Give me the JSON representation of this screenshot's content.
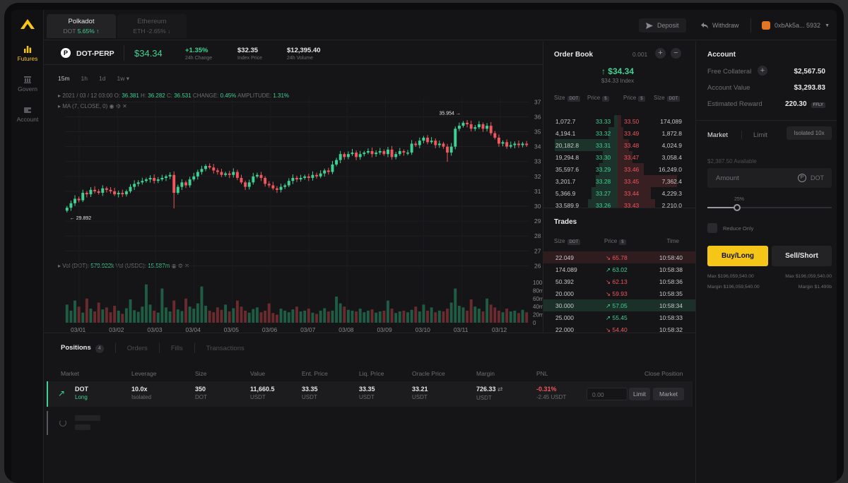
{
  "sidebar": {
    "items": [
      {
        "label": "Futures",
        "icon": "bar-chart-icon",
        "active": true
      },
      {
        "label": "Govern",
        "icon": "building-icon",
        "active": false
      },
      {
        "label": "Account",
        "icon": "wallet-icon",
        "active": false
      }
    ]
  },
  "markets": [
    {
      "name": "Polkadot",
      "symbol": "DOT",
      "change": "5.65% ↑",
      "active": true
    },
    {
      "name": "Ethereum",
      "symbol": "ETH",
      "change": "-2.65% ↓",
      "active": false
    }
  ],
  "topbar": {
    "deposit": "Deposit",
    "withdraw": "Withdraw",
    "wallet": "0xbAk5a... 5932"
  },
  "ticker": {
    "pair": "DOT-PERP",
    "price": "$34.34",
    "change": "+1.35%",
    "change_label": "24h Change",
    "index_price": "$32.35",
    "index_label": "Index Price",
    "volume": "$12,395.40",
    "volume_label": "24h Volume"
  },
  "chart": {
    "timeframes": [
      "15m",
      "1h",
      "1d",
      "1w ▾"
    ],
    "ohlc_line": {
      "date": "2021 / 03 / 12 03:00",
      "o_label": "O:",
      "o": "36.381",
      "h_label": "H:",
      "h": "36.282",
      "c_label": "C:",
      "c": "36.531",
      "change_label": "CHANGE:",
      "change": "0.45%",
      "amp_label": "AMPLITUDE:",
      "amp": "1.31%"
    },
    "ma_label": "MA (7, CLOSE, 0)",
    "vol_line": {
      "dot_label": "Vol (DOT):",
      "dot": "579.922k",
      "usdc_label": "Vol (USDC):",
      "usdc": "15.587m"
    },
    "high_marker": "35.954",
    "low_marker": "29.892"
  },
  "chart_data": {
    "type": "candlestick",
    "y_ticks": [
      37,
      36,
      35,
      34,
      33,
      32,
      31,
      30,
      29,
      28,
      27,
      26
    ],
    "ylim": [
      25.5,
      37.3
    ],
    "vol_ticks": [
      "100m",
      "80m",
      "60m",
      "40m",
      "20m",
      "0"
    ],
    "x_ticks": [
      "03/01",
      "03/02",
      "03/03",
      "03/04",
      "03/05",
      "03/06",
      "03/07",
      "03/08",
      "03/09",
      "03/10",
      "03/11",
      "03/12"
    ],
    "closes": [
      29.9,
      30.2,
      30.5,
      30.4,
      30.9,
      30.8,
      31.1,
      31.0,
      30.9,
      31.2,
      31.1,
      31.0,
      30.8,
      30.9,
      30.8,
      31.0,
      31.3,
      31.5,
      31.6,
      31.7,
      31.8,
      31.9,
      31.7,
      31.8,
      31.9,
      32.0,
      32.1,
      30.9,
      31.3,
      31.6,
      31.4,
      31.8,
      32.0,
      32.3,
      32.5,
      32.7,
      32.6,
      32.4,
      32.3,
      32.1,
      32.2,
      32.1,
      32.3,
      31.9,
      31.6,
      31.3,
      31.6,
      32.0,
      32.1,
      31.9,
      31.5,
      31.4,
      31.2,
      31.1,
      31.3,
      31.4,
      31.7,
      31.9,
      31.8,
      31.9,
      32.0,
      31.9,
      32.1,
      32.0,
      32.2,
      32.4,
      32.3,
      32.8,
      33.1,
      33.5,
      33.3,
      33.5,
      33.6,
      33.3,
      33.5,
      33.6,
      33.7,
      33.5,
      33.6,
      33.7,
      33.5,
      33.8,
      33.3,
      33.5,
      33.7,
      33.6,
      33.6,
      34.2,
      34.1,
      34.4,
      34.6,
      34.3,
      34.4,
      34.1,
      34.2,
      34.0,
      33.6,
      34.0,
      35.2,
      35.4,
      35.6,
      35.5,
      35.2,
      35.3,
      35.5,
      35.2,
      35.4,
      34.9,
      34.6,
      34.2,
      34.3,
      34.0,
      34.1,
      34.2,
      34.1,
      34.2,
      34.1
    ],
    "volumes": [
      45,
      30,
      55,
      40,
      25,
      60,
      35,
      28,
      50,
      33,
      38,
      26,
      42,
      30,
      22,
      36,
      58,
      31,
      27,
      40,
      95,
      45,
      30,
      25,
      85,
      38,
      28,
      55,
      33,
      29,
      60,
      40,
      35,
      48,
      90,
      42,
      30,
      26,
      38,
      32,
      45,
      28,
      36,
      55,
      40,
      30,
      25,
      34,
      38,
      26,
      30,
      48,
      24,
      20,
      35,
      30,
      26,
      33,
      40,
      28,
      30,
      35,
      25,
      22,
      30,
      36,
      28,
      30,
      65,
      48,
      40,
      32,
      30,
      28,
      35,
      26,
      30,
      33,
      25,
      28,
      30,
      55,
      35,
      24,
      28,
      30,
      26,
      32,
      40,
      28,
      45,
      30,
      38,
      26,
      30,
      28,
      35,
      50,
      85,
      42,
      38,
      30,
      58,
      40,
      35,
      28,
      60,
      45,
      38,
      30,
      26,
      35,
      28,
      30,
      24,
      32,
      26
    ]
  },
  "orderbook": {
    "title": "Order Book",
    "tick": "0.001",
    "mid_price": "↑ $34.34",
    "mid_index": "$34.33 Index",
    "headers": {
      "size": "Size",
      "size_unit": "DOT",
      "price": "Price",
      "price_unit": "$"
    },
    "rows": [
      {
        "bid_size": "1,072.7",
        "bid_price": "33.33",
        "ask_price": "33.50",
        "ask_size": "174,089",
        "bid_depth": 0.05,
        "ask_depth": 0.05
      },
      {
        "bid_size": "4,194.1",
        "bid_price": "33.32",
        "ask_price": "33.49",
        "ask_size": "1,872.8",
        "bid_depth": 0.12,
        "ask_depth": 0.08
      },
      {
        "bid_size": "20,182.8",
        "bid_price": "33.31",
        "ask_price": "33.48",
        "ask_size": "4,024.9",
        "bid_depth": 0.85,
        "ask_depth": 0.15
      },
      {
        "bid_size": "19,294.8",
        "bid_price": "33.30",
        "ask_price": "33.47",
        "ask_size": "3,058.4",
        "bid_depth": 0.2,
        "ask_depth": 0.2
      },
      {
        "bid_size": "35,597.6",
        "bid_price": "33.29",
        "ask_price": "33.46",
        "ask_size": "16,249.0",
        "bid_depth": 0.25,
        "ask_depth": 0.35
      },
      {
        "bid_size": "3,201.7",
        "bid_price": "33.28",
        "ask_price": "33.45",
        "ask_size": "7,362.4",
        "bid_depth": 0.3,
        "ask_depth": 0.8
      },
      {
        "bid_size": "5,366.9",
        "bid_price": "33.27",
        "ask_price": "33.44",
        "ask_size": "4,229.3",
        "bid_depth": 0.35,
        "ask_depth": 0.45
      },
      {
        "bid_size": "33,589.9",
        "bid_price": "33.26",
        "ask_price": "33.43",
        "ask_size": "2,210.0",
        "bid_depth": 0.4,
        "ask_depth": 0.5
      }
    ]
  },
  "trades": {
    "title": "Trades",
    "headers": {
      "size": "Size",
      "size_unit": "DOT",
      "price": "Price",
      "price_unit": "$",
      "time": "Time"
    },
    "rows": [
      {
        "size": "22.049",
        "price": "65.78",
        "time": "10:58:40",
        "side": "sell"
      },
      {
        "size": "174.089",
        "price": "63.02",
        "time": "10:58:38",
        "side": "buy"
      },
      {
        "size": "50.392",
        "price": "62.13",
        "time": "10:58:36",
        "side": "sell"
      },
      {
        "size": "20.000",
        "price": "59.93",
        "time": "10:58:35",
        "side": "sell"
      },
      {
        "size": "30.000",
        "price": "57.05",
        "time": "10:58:34",
        "side": "buy"
      },
      {
        "size": "25.000",
        "price": "55.45",
        "time": "10:58:33",
        "side": "buy"
      },
      {
        "size": "22.000",
        "price": "54.40",
        "time": "10:58:32",
        "side": "sell"
      }
    ]
  },
  "account": {
    "title": "Account",
    "free_collateral_label": "Free Collateral",
    "free_collateral": "$2,567.50",
    "account_value_label": "Account Value",
    "account_value": "$3,293.83",
    "est_reward_label": "Estimated Reward",
    "est_reward": "220.30",
    "reward_unit": "FFLY"
  },
  "order_form": {
    "tab_market": "Market",
    "tab_limit": "Limit",
    "margin_mode": "Isolated 10x",
    "available": "$2,387.50 Available",
    "amount_placeholder": "Amount",
    "amount_unit": "DOT",
    "slider_pct": "25%",
    "slider_value": 0.25,
    "reduce_only": "Reduce Only",
    "buy_label": "Buy/Long",
    "sell_label": "Sell/Short",
    "buy_max": "Max $196,059,540.00",
    "sell_max": "Max $196,059,540.00",
    "buy_margin": "Margin $196,059,540.00",
    "sell_margin": "Margin $1.490b"
  },
  "positions": {
    "tabs": [
      "Positions",
      "Orders",
      "Fills",
      "Transactions"
    ],
    "count": "4",
    "headers": [
      "Market",
      "Leverage",
      "Size",
      "Value",
      "Ent. Price",
      "Liq. Price",
      "Oracle Price",
      "Margin",
      "PNL",
      "Close Position"
    ],
    "row": {
      "market": "DOT",
      "side": "Long",
      "leverage": "10.0x",
      "mode": "Isolated",
      "size": "350",
      "size_unit": "DOT",
      "value": "11,660.5",
      "value_unit": "USDT",
      "ent_price": "33.35",
      "ent_unit": "USDT",
      "liq_price": "33.35",
      "liq_unit": "USDT",
      "oracle_price": "33.21",
      "oracle_unit": "USDT",
      "margin": "726.33",
      "margin_unit": "USDT",
      "pnl_pct": "-0.31%",
      "pnl_val": "-2.45 USDT",
      "close_input": "0.00",
      "limit_btn": "Limit",
      "market_btn": "Market"
    }
  }
}
